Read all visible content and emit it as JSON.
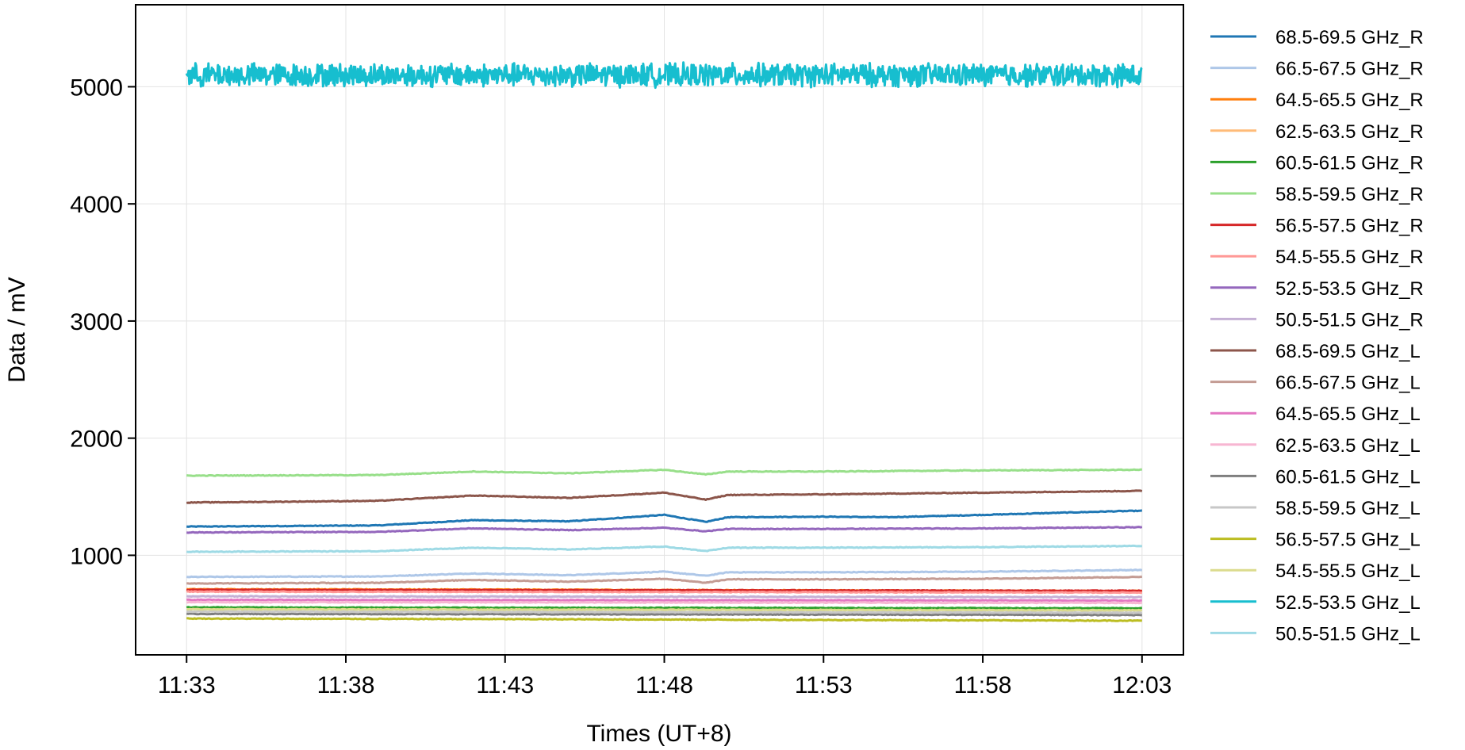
{
  "chart_data": {
    "type": "line",
    "title": "",
    "xlabel": "Times (UT+8)",
    "ylabel": "Data / mV",
    "x_ticks": [
      "11:33",
      "11:38",
      "11:43",
      "11:48",
      "11:53",
      "11:58",
      "12:03"
    ],
    "x_tick_minutes": [
      0,
      5,
      10,
      15,
      20,
      25,
      30
    ],
    "xlim_minutes": [
      -1.6,
      31.3
    ],
    "x_start": "11:33",
    "x_end": "12:02",
    "ylim": [
      150,
      5700
    ],
    "y_ticks": [
      1000,
      2000,
      3000,
      4000,
      5000
    ],
    "grid": true,
    "legend_position": "outside-right",
    "series": [
      {
        "name": "68.5-69.5 GHz_R",
        "color": "#1f77b4",
        "x_minutes": [
          0,
          6,
          9,
          12,
          15,
          16.3,
          17,
          20,
          22,
          25,
          29,
          30
        ],
        "values": [
          1245,
          1255,
          1300,
          1290,
          1345,
          1285,
          1325,
          1330,
          1325,
          1345,
          1375,
          1380
        ]
      },
      {
        "name": "66.5-67.5 GHz_R",
        "color": "#aec7e8",
        "x_minutes": [
          0,
          6,
          9,
          12,
          15,
          16.3,
          17,
          20,
          25,
          30
        ],
        "values": [
          815,
          820,
          845,
          830,
          860,
          825,
          855,
          855,
          860,
          875
        ]
      },
      {
        "name": "64.5-65.5 GHz_R",
        "color": "#ff7f0e",
        "x_minutes": [
          0,
          10,
          20,
          30
        ],
        "values": [
          710,
          707,
          700,
          695
        ]
      },
      {
        "name": "62.5-63.5 GHz_R",
        "color": "#ffbb78",
        "x_minutes": [
          0,
          10,
          20,
          30
        ],
        "values": [
          700,
          697,
          692,
          688
        ]
      },
      {
        "name": "60.5-61.5 GHz_R",
        "color": "#2ca02c",
        "x_minutes": [
          0,
          10,
          20,
          30
        ],
        "values": [
          555,
          552,
          550,
          548
        ]
      },
      {
        "name": "58.5-59.5 GHz_R",
        "color": "#98df8a",
        "x_minutes": [
          0,
          6,
          9,
          12,
          15,
          16.3,
          17,
          20,
          25,
          30
        ],
        "values": [
          1680,
          1685,
          1715,
          1700,
          1730,
          1690,
          1715,
          1715,
          1725,
          1730
        ]
      },
      {
        "name": "56.5-57.5 GHz_R",
        "color": "#d62728",
        "x_minutes": [
          0,
          10,
          20,
          30
        ],
        "values": [
          705,
          703,
          700,
          697
        ]
      },
      {
        "name": "54.5-55.5 GHz_R",
        "color": "#ff9896",
        "x_minutes": [
          0,
          10,
          20,
          30
        ],
        "values": [
          690,
          688,
          685,
          682
        ]
      },
      {
        "name": "52.5-53.5 GHz_R",
        "color": "#9467bd",
        "x_minutes": [
          0,
          6,
          9,
          12,
          15,
          16.3,
          17,
          20,
          25,
          30
        ],
        "values": [
          1195,
          1200,
          1230,
          1215,
          1235,
          1205,
          1225,
          1225,
          1230,
          1240
        ]
      },
      {
        "name": "50.5-51.5 GHz_R",
        "color": "#c5b0d5",
        "x_minutes": [
          0,
          10,
          20,
          30
        ],
        "values": [
          650,
          648,
          645,
          643
        ]
      },
      {
        "name": "68.5-69.5 GHz_L",
        "color": "#8c564b",
        "x_minutes": [
          0,
          6,
          9,
          12,
          15,
          16.3,
          17,
          20,
          25,
          30
        ],
        "values": [
          1450,
          1465,
          1510,
          1490,
          1535,
          1475,
          1515,
          1520,
          1535,
          1550
        ]
      },
      {
        "name": "66.5-67.5 GHz_L",
        "color": "#c49c94",
        "x_minutes": [
          0,
          6,
          9,
          12,
          15,
          16.3,
          17,
          20,
          25,
          30
        ],
        "values": [
          760,
          765,
          790,
          775,
          800,
          765,
          795,
          795,
          800,
          815
        ]
      },
      {
        "name": "64.5-65.5 GHz_L",
        "color": "#e377c2",
        "x_minutes": [
          0,
          10,
          20,
          30
        ],
        "values": [
          620,
          618,
          616,
          614
        ]
      },
      {
        "name": "62.5-63.5 GHz_L",
        "color": "#f7b6d2",
        "x_minutes": [
          0,
          10,
          20,
          30
        ],
        "values": [
          600,
          598,
          596,
          594
        ]
      },
      {
        "name": "60.5-61.5 GHz_L",
        "color": "#7f7f7f",
        "x_minutes": [
          0,
          10,
          20,
          30
        ],
        "values": [
          500,
          497,
          494,
          490
        ]
      },
      {
        "name": "58.5-59.5 GHz_L",
        "color": "#c7c7c7",
        "x_minutes": [
          0,
          10,
          20,
          30
        ],
        "values": [
          520,
          517,
          514,
          511
        ]
      },
      {
        "name": "56.5-57.5 GHz_L",
        "color": "#bcbd22",
        "x_minutes": [
          0,
          10,
          20,
          30
        ],
        "values": [
          460,
          455,
          448,
          442
        ]
      },
      {
        "name": "54.5-55.5 GHz_L",
        "color": "#dbdb8d",
        "x_minutes": [
          0,
          10,
          20,
          30
        ],
        "values": [
          540,
          537,
          534,
          531
        ]
      },
      {
        "name": "52.5-53.5 GHz_L",
        "color": "#17becf",
        "x_minutes": [
          0,
          30
        ],
        "values": [
          5100,
          5100
        ],
        "noise_amplitude": 110
      },
      {
        "name": "50.5-51.5 GHz_L",
        "color": "#9edae5",
        "x_minutes": [
          0,
          6,
          9,
          12,
          15,
          16.3,
          17,
          20,
          25,
          30
        ],
        "values": [
          1030,
          1035,
          1065,
          1050,
          1075,
          1035,
          1065,
          1065,
          1070,
          1080
        ]
      }
    ]
  }
}
